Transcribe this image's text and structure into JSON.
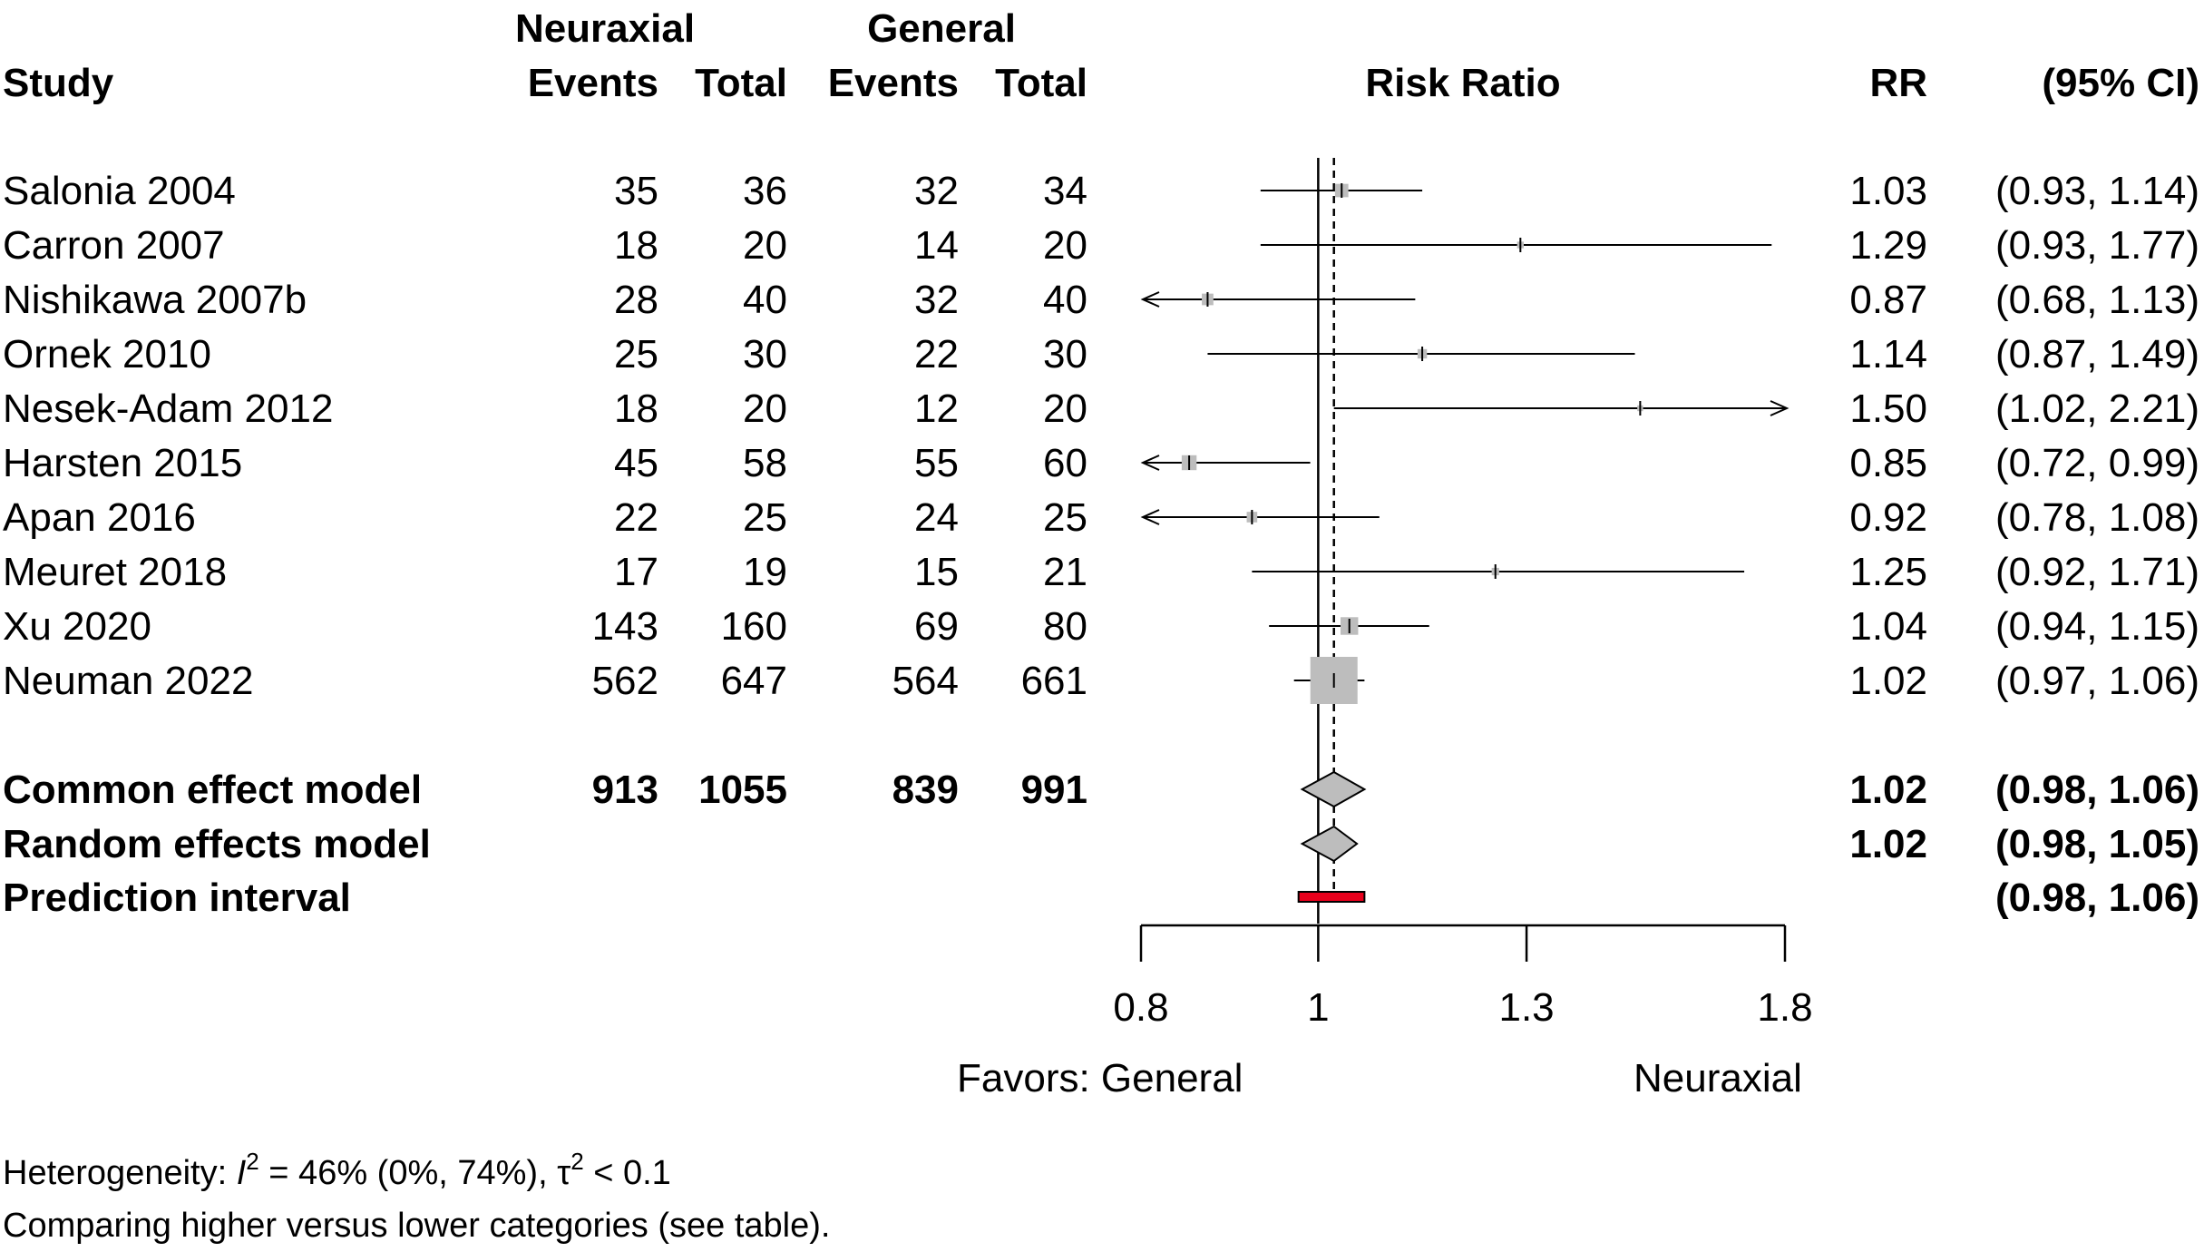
{
  "chart_data": {
    "type": "forest",
    "xlabel": "Risk Ratio",
    "x_scale": "log",
    "xlim": [
      0.8,
      1.8
    ],
    "x_ticks": [
      0.8,
      1,
      1.3,
      1.8
    ],
    "x_tick_labels": [
      "0.8",
      "1",
      "1.3",
      "1.8"
    ],
    "favors_left": "Favors: General",
    "favors_right": "Neuraxial",
    "headers": {
      "study": "Study",
      "group1": "Neuraxial",
      "group2": "General",
      "events": "Events",
      "total": "Total",
      "effect": "Risk Ratio",
      "rr": "RR",
      "ci": "(95% CI)"
    },
    "studies": [
      {
        "label": "Salonia 2004",
        "e1": "35",
        "t1": "36",
        "e2": "32",
        "t2": "34",
        "rr": 1.03,
        "lower": 0.93,
        "upper": 1.14,
        "rr_text": "1.03",
        "ci_text": "(0.93, 1.14)",
        "weight": 0.08
      },
      {
        "label": "Carron 2007",
        "e1": "18",
        "t1": "20",
        "e2": "14",
        "t2": "20",
        "rr": 1.29,
        "lower": 0.93,
        "upper": 1.77,
        "rr_text": "1.29",
        "ci_text": "(0.93, 1.77)",
        "weight": 0.02
      },
      {
        "label": "Nishikawa 2007b",
        "e1": "28",
        "t1": "40",
        "e2": "32",
        "t2": "40",
        "rr": 0.87,
        "lower": 0.68,
        "upper": 1.13,
        "rr_text": "0.87",
        "ci_text": "(0.68, 1.13)",
        "weight": 0.06
      },
      {
        "label": "Ornek 2010",
        "e1": "25",
        "t1": "30",
        "e2": "22",
        "t2": "30",
        "rr": 1.14,
        "lower": 0.87,
        "upper": 1.49,
        "rr_text": "1.14",
        "ci_text": "(0.87, 1.49)",
        "weight": 0.04
      },
      {
        "label": "Nesek-Adam 2012",
        "e1": "18",
        "t1": "20",
        "e2": "12",
        "t2": "20",
        "rr": 1.5,
        "lower": 1.02,
        "upper": 2.21,
        "rr_text": "1.50",
        "ci_text": "(1.02, 2.21)",
        "weight": 0.015
      },
      {
        "label": "Harsten 2015",
        "e1": "45",
        "t1": "58",
        "e2": "55",
        "t2": "60",
        "rr": 0.85,
        "lower": 0.72,
        "upper": 0.99,
        "rr_text": "0.85",
        "ci_text": "(0.72, 0.99)",
        "weight": 0.1
      },
      {
        "label": "Apan 2016",
        "e1": "22",
        "t1": "25",
        "e2": "24",
        "t2": "25",
        "rr": 0.92,
        "lower": 0.78,
        "upper": 1.08,
        "rr_text": "0.92",
        "ci_text": "(0.78, 1.08)",
        "weight": 0.05
      },
      {
        "label": "Meuret 2018",
        "e1": "17",
        "t1": "19",
        "e2": "15",
        "t2": "21",
        "rr": 1.25,
        "lower": 0.92,
        "upper": 1.71,
        "rr_text": "1.25",
        "ci_text": "(0.92, 1.71)",
        "weight": 0.025
      },
      {
        "label": "Xu 2020",
        "e1": "143",
        "t1": "160",
        "e2": "69",
        "t2": "80",
        "rr": 1.04,
        "lower": 0.94,
        "upper": 1.15,
        "rr_text": "1.04",
        "ci_text": "(0.94, 1.15)",
        "weight": 0.14
      },
      {
        "label": "Neuman 2022",
        "e1": "562",
        "t1": "647",
        "e2": "564",
        "t2": "661",
        "rr": 1.02,
        "lower": 0.97,
        "upper": 1.06,
        "rr_text": "1.02",
        "ci_text": "(0.97, 1.06)",
        "weight": 1.0
      }
    ],
    "common_effect": {
      "label": "Common effect model",
      "e1": "913",
      "t1": "1055",
      "e2": "839",
      "t2": "991",
      "rr": 1.02,
      "lower": 0.98,
      "upper": 1.06,
      "rr_text": "1.02",
      "ci_text": "(0.98, 1.06)"
    },
    "random_effects": {
      "label": "Random effects model",
      "rr": 1.02,
      "lower": 0.98,
      "upper": 1.05,
      "rr_text": "1.02",
      "ci_text": "(0.98, 1.05)"
    },
    "prediction_interval": {
      "label": "Prediction interval",
      "lower": 0.98,
      "upper": 1.06,
      "ci_text": "(0.98, 1.06)"
    },
    "heterogeneity": {
      "prefix": "Heterogeneity: ",
      "i_symbol": "I",
      "sup": "2",
      "i2_text": " = 46% (0%, 74%), ",
      "tau_symbol": "τ",
      "tau_text": " < 0.1"
    },
    "note": "Comparing higher versus lower categories (see table).",
    "colors": {
      "square": "#bdbdbd",
      "diamond": "#bdbdbd",
      "prediction": "#e8001c",
      "line": "#000000"
    }
  }
}
